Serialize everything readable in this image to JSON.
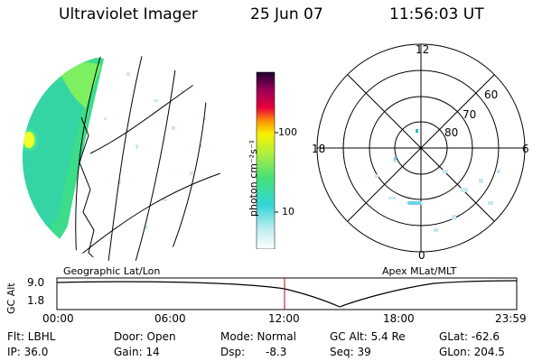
{
  "header": {
    "instrument": "Ultraviolet Imager",
    "date": "25 Jun 07",
    "time": "11:56:03 UT"
  },
  "colorbar": {
    "label": "photon cm⁻²s⁻¹",
    "ticks": [
      "100",
      "10"
    ],
    "scale": "log"
  },
  "polar_plot": {
    "mlt_labels": [
      "12",
      "18",
      "6",
      "0"
    ],
    "lat_labels": [
      "60",
      "70",
      "80"
    ]
  },
  "panel_labels": {
    "left": "Geographic Lat/Lon",
    "right": "Apex MLat/MLT"
  },
  "altitude_plot": {
    "ylabel": "GC Alt",
    "y_ticks": [
      "9.0",
      "1.8"
    ],
    "x_ticks": [
      "00:00",
      "06:00",
      "12:00",
      "18:00",
      "23:59"
    ]
  },
  "status": {
    "flt": "Flt: LBHL",
    "ip": "IP: 36.0",
    "door": "Door: Open",
    "gain": "Gain: 14",
    "mode": "Mode: Normal",
    "dsp_label": "Dsp:",
    "dsp_value": "-8.3",
    "gc_alt": "GC Alt: 5.4 Re",
    "seq": "Seq: 39",
    "glat": "GLat: -62.6",
    "glon": "GLon: 204.5"
  }
}
